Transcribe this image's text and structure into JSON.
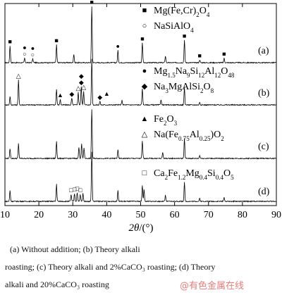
{
  "chart_data": {
    "type": "line",
    "xlabel_main": "2θ",
    "xlabel_unit": "/(°)",
    "xlim": [
      10,
      90
    ],
    "xticks": [
      10,
      20,
      30,
      40,
      50,
      60,
      70,
      80,
      90
    ],
    "panels": [
      {
        "label": "(a)",
        "peaks": [
          {
            "x": 11.5,
            "h": 0.3
          },
          {
            "x": 15.8,
            "h": 0.08
          },
          {
            "x": 18.2,
            "h": 0.07
          },
          {
            "x": 25.2,
            "h": 0.32
          },
          {
            "x": 30.3,
            "h": 0.15
          },
          {
            "x": 35.6,
            "h": 1.0
          },
          {
            "x": 43.3,
            "h": 0.22
          },
          {
            "x": 50.5,
            "h": 0.35
          },
          {
            "x": 57.3,
            "h": 0.12
          },
          {
            "x": 62.9,
            "h": 0.4
          },
          {
            "x": 67.4,
            "h": 0.05
          },
          {
            "x": 74.6,
            "h": 0.08
          }
        ],
        "markers": [
          {
            "x": 11.5,
            "sym": "■"
          },
          {
            "x": 15.8,
            "sym": "○"
          },
          {
            "x": 15.8,
            "sym": "●",
            "row": 2
          },
          {
            "x": 18.2,
            "sym": "○"
          },
          {
            "x": 18.2,
            "sym": "●",
            "row": 2
          },
          {
            "x": 25.2,
            "sym": "■"
          },
          {
            "x": 35.6,
            "sym": "■"
          },
          {
            "x": 43.3,
            "sym": "●"
          },
          {
            "x": 50.5,
            "sym": "■"
          },
          {
            "x": 62.9,
            "sym": "■"
          },
          {
            "x": 67.4,
            "sym": "■"
          },
          {
            "x": 74.6,
            "sym": "■"
          }
        ],
        "legend": [
          {
            "sym": "■",
            "pre": "Mg(Fe,Cr)",
            "sub": "2",
            "post": "O",
            "sub2": "4"
          },
          {
            "sym": "○",
            "pre": "NaSiAlO",
            "sub": "4",
            "post": "",
            "sub2": ""
          }
        ]
      },
      {
        "label": "(b)",
        "peaks": [
          {
            "x": 11.5,
            "h": 0.18
          },
          {
            "x": 14.0,
            "h": 0.55
          },
          {
            "x": 25.2,
            "h": 0.35
          },
          {
            "x": 26.3,
            "h": 0.12
          },
          {
            "x": 29.7,
            "h": 0.15
          },
          {
            "x": 31.6,
            "h": 0.28
          },
          {
            "x": 32.5,
            "h": 0.4
          },
          {
            "x": 33.2,
            "h": 0.3
          },
          {
            "x": 35.6,
            "h": 1.0
          },
          {
            "x": 38.0,
            "h": 0.08
          },
          {
            "x": 44.5,
            "h": 0.1
          },
          {
            "x": 50.5,
            "h": 0.35
          },
          {
            "x": 56.0,
            "h": 0.12
          },
          {
            "x": 62.9,
            "h": 0.38
          },
          {
            "x": 67.4,
            "h": 0.06
          }
        ],
        "markers": [
          {
            "x": 14.0,
            "sym": "△"
          },
          {
            "x": 26.3,
            "sym": "▲"
          },
          {
            "x": 29.7,
            "sym": "◆"
          },
          {
            "x": 31.6,
            "sym": "△"
          },
          {
            "x": 32.5,
            "sym": "◆"
          },
          {
            "x": 32.5,
            "sym": "◆",
            "row": 2
          },
          {
            "x": 33.2,
            "sym": "△"
          },
          {
            "x": 38.0,
            "sym": "◆"
          },
          {
            "x": 40.0,
            "sym": "▲"
          }
        ],
        "legend": [
          {
            "sym": "●",
            "pre": "Mg",
            "sub": "1.5",
            "post": "Na",
            "sub2": "9",
            "post2": "Si",
            "sub3": "12",
            "post3": "Al",
            "sub4": "12",
            "post4": "O",
            "sub5": "48"
          },
          {
            "sym": "◆",
            "pre": "Na",
            "sub": "3",
            "post": "MgAlSi",
            "sub2": "2",
            "post2": "O",
            "sub3": "8"
          }
        ]
      },
      {
        "label": "(c)",
        "peaks": [
          {
            "x": 11.5,
            "h": 0.2
          },
          {
            "x": 14.0,
            "h": 0.3
          },
          {
            "x": 25.2,
            "h": 0.35
          },
          {
            "x": 31.8,
            "h": 0.22
          },
          {
            "x": 32.6,
            "h": 0.3
          },
          {
            "x": 33.3,
            "h": 0.22
          },
          {
            "x": 35.6,
            "h": 1.0
          },
          {
            "x": 43.3,
            "h": 0.18
          },
          {
            "x": 50.5,
            "h": 0.35
          },
          {
            "x": 56.5,
            "h": 0.12
          },
          {
            "x": 62.9,
            "h": 0.4
          },
          {
            "x": 67.4,
            "h": 0.06
          }
        ],
        "markers": [],
        "legend": [
          {
            "sym": "▲",
            "pre": "Fe",
            "sub": "2",
            "post": "O",
            "sub2": "3"
          },
          {
            "sym": "△",
            "pre": "Na(Fe",
            "sub": "0.75",
            "post": "Al",
            "sub2": "0.25",
            "post2": ")O",
            "sub3": "2"
          }
        ]
      },
      {
        "label": "(d)",
        "peaks": [
          {
            "x": 11.5,
            "h": 0.22
          },
          {
            "x": 25.2,
            "h": 0.35
          },
          {
            "x": 29.5,
            "h": 0.14
          },
          {
            "x": 30.5,
            "h": 0.16
          },
          {
            "x": 31.3,
            "h": 0.18
          },
          {
            "x": 32.2,
            "h": 0.14
          },
          {
            "x": 33.0,
            "h": 0.16
          },
          {
            "x": 35.6,
            "h": 1.0
          },
          {
            "x": 43.3,
            "h": 0.22
          },
          {
            "x": 50.5,
            "h": 0.32
          },
          {
            "x": 51.0,
            "h": 0.24
          },
          {
            "x": 57.3,
            "h": 0.12
          },
          {
            "x": 62.9,
            "h": 0.38
          },
          {
            "x": 67.4,
            "h": 0.06
          },
          {
            "x": 74.6,
            "h": 0.08
          }
        ],
        "markers": [
          {
            "x": 29.5,
            "sym": "□"
          },
          {
            "x": 30.5,
            "sym": "□"
          },
          {
            "x": 31.3,
            "sym": "□"
          },
          {
            "x": 32.2,
            "sym": "□"
          }
        ],
        "legend": [
          {
            "sym": "□",
            "pre": "Ca",
            "sub": "2",
            "post": "Fe",
            "sub2": "1.2",
            "post2": "Mg",
            "sub3": "0.4",
            "post3": "Si",
            "sub4": "0.4",
            "post4": "O",
            "sub5": "5"
          }
        ]
      }
    ]
  },
  "caption": {
    "line1": "(a)  Without  addition;  (b)  Theory  alkali",
    "line2": "roasting; (c) Theory alkali and 2%CaCO₃ roasting; (d) Theory",
    "line3": "alkali and 20%CaCO₃ roasting"
  },
  "watermark": "@有色金属在线"
}
